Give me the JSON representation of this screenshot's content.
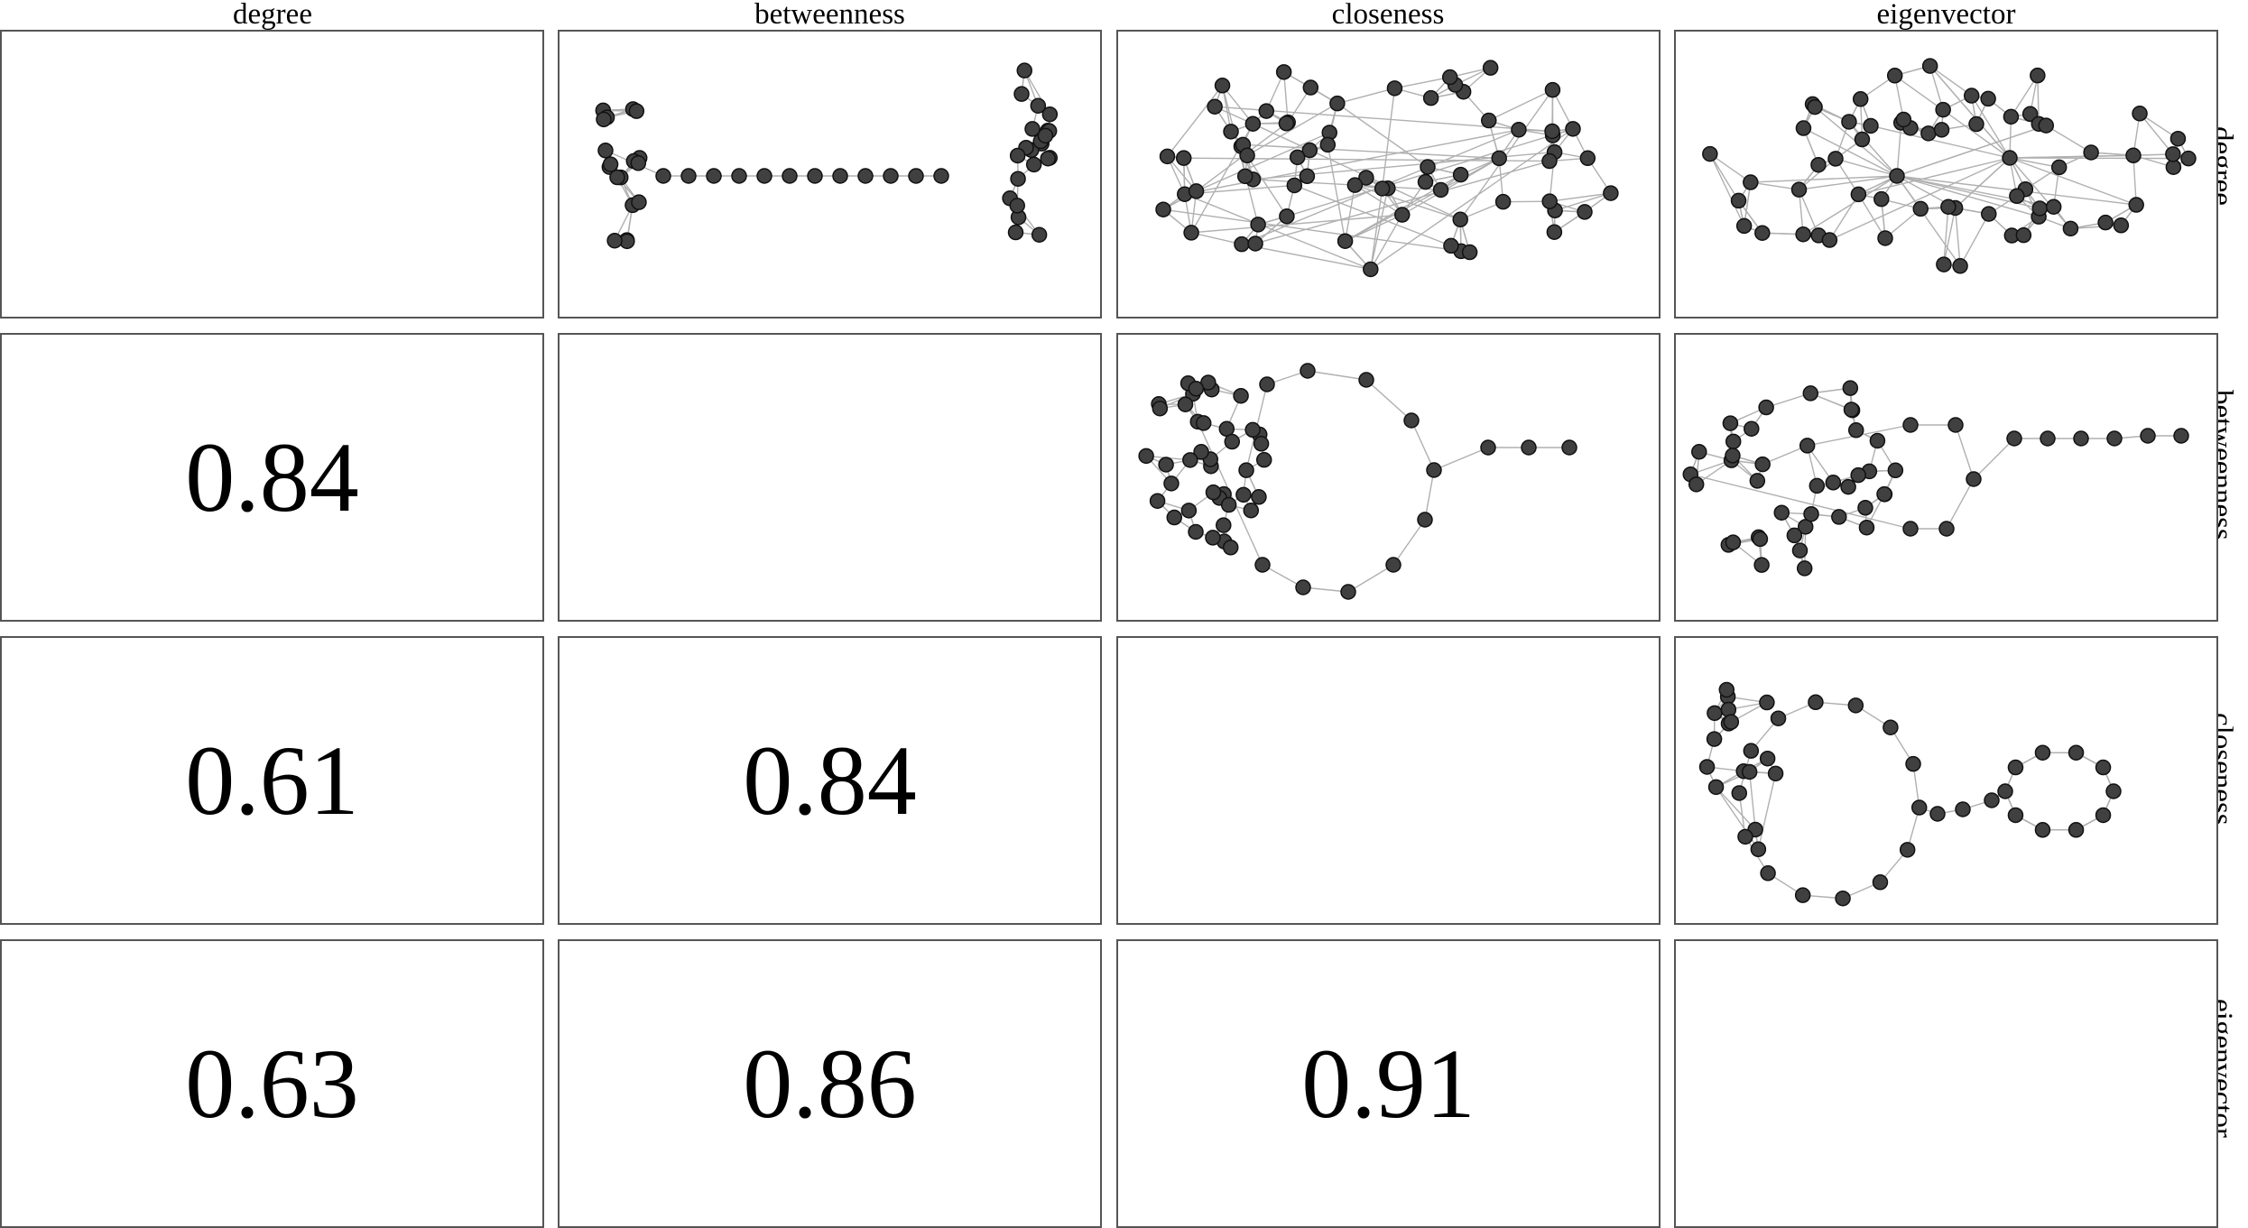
{
  "columns": [
    "degree",
    "betweenness",
    "closeness",
    "eigenvector"
  ],
  "rows": [
    "degree",
    "betweenness",
    "closeness",
    "eigenvector"
  ],
  "correlations": {
    "betweenness_degree": "0.84",
    "closeness_degree": "0.61",
    "closeness_betweenness": "0.84",
    "eigenvector_degree": "0.63",
    "eigenvector_betweenness": "0.86",
    "eigenvector_closeness": "0.91"
  },
  "colors": {
    "node_fill": "#404040",
    "node_stroke": "#111111",
    "edge": "#b0b0b0",
    "panel_border": "#555555"
  }
}
